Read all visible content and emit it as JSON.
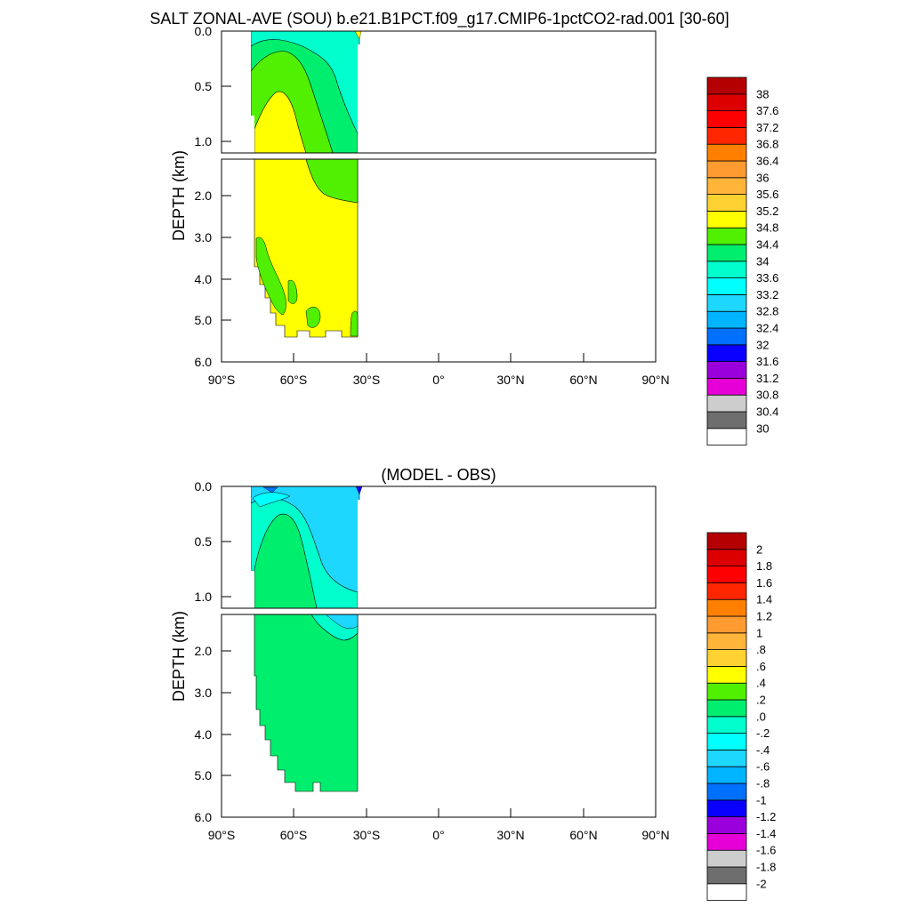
{
  "chart_data": [
    {
      "type": "contour",
      "title": "SALT ZONAL-AVE (SOU) b.e21.B1PCT.f09_g17.CMIP6-1pctCO2-rad.001 [30-60]",
      "ylabel": "DEPTH (km)",
      "xlabel": "",
      "x_ticks": [
        "90°S",
        "60°S",
        "30°S",
        "0°",
        "30°N",
        "60°N",
        "90°N"
      ],
      "x_tick_values": [
        -90,
        -60,
        -30,
        0,
        30,
        60,
        90
      ],
      "xlim": [
        -90,
        90
      ],
      "y_ticks_upper": [
        "0.0",
        "0.5",
        "1.0"
      ],
      "y_ticks_upper_values": [
        0,
        0.5,
        1.0
      ],
      "ylim_upper": [
        0,
        1.15
      ],
      "y_ticks_lower": [
        "2.0",
        "3.0",
        "4.0",
        "5.0",
        "6.0"
      ],
      "y_ticks_lower_values": [
        2,
        3,
        4,
        5,
        6
      ],
      "ylim_lower": [
        1.15,
        6.0
      ],
      "levels": [
        "30",
        "30.4",
        "30.8",
        "31.2",
        "31.6",
        "32",
        "32.4",
        "32.8",
        "33.2",
        "33.6",
        "34",
        "34.4",
        "34.8",
        "35.2",
        "35.6",
        "36",
        "36.4",
        "36.8",
        "37.2",
        "37.6",
        "38"
      ],
      "colors": [
        "#ffffff",
        "#6e6e6e",
        "#cdcdcd",
        "#e600d7",
        "#9a00dc",
        "#0a00ff",
        "#0070ff",
        "#00b4ff",
        "#1ed7ff",
        "#00ffff",
        "#00ffcc",
        "#00ee6e",
        "#50f000",
        "#ffff00",
        "#ffd231",
        "#ffb43a",
        "#ff9b30",
        "#ff8000",
        "#ff2600",
        "#ff0000",
        "#dc0000",
        "#b40000"
      ],
      "regions": [
        {
          "name": "yellow-34.8",
          "color": "#ffff00",
          "depth_range_km": [
            0.6,
            5.4
          ],
          "lat_range": [
            -77,
            -34
          ]
        },
        {
          "name": "green-34.4",
          "color": "#50f000",
          "depth_range_km": [
            0.1,
            2.2
          ],
          "lat_range": [
            -77,
            -34
          ]
        },
        {
          "name": "green-34.0",
          "color": "#00ee6e",
          "depth_range_km": [
            0,
            0.8
          ],
          "lat_range": [
            -77,
            -34
          ]
        },
        {
          "name": "cyan-33.6",
          "color": "#00ffcc",
          "depth_range_km": [
            0,
            0.4
          ],
          "lat_range": [
            -75,
            -34
          ]
        }
      ]
    },
    {
      "type": "contour",
      "title": "(MODEL - OBS)",
      "ylabel": "DEPTH (km)",
      "xlabel": "",
      "x_ticks": [
        "90°S",
        "60°S",
        "30°S",
        "0°",
        "30°N",
        "60°N",
        "90°N"
      ],
      "x_tick_values": [
        -90,
        -60,
        -30,
        0,
        30,
        60,
        90
      ],
      "xlim": [
        -90,
        90
      ],
      "y_ticks_upper": [
        "0.0",
        "0.5",
        "1.0"
      ],
      "y_ticks_upper_values": [
        0,
        0.5,
        1.0
      ],
      "ylim_upper": [
        0,
        1.15
      ],
      "y_ticks_lower": [
        "2.0",
        "3.0",
        "4.0",
        "5.0",
        "6.0"
      ],
      "y_ticks_lower_values": [
        2,
        3,
        4,
        5,
        6
      ],
      "ylim_lower": [
        1.15,
        6.0
      ],
      "levels": [
        "-2",
        "-1.8",
        "-1.6",
        "-1.4",
        "-1.2",
        "-1",
        "-.8",
        "-.6",
        "-.4",
        "-.2",
        ".0",
        ".2",
        ".4",
        ".6",
        ".8",
        "1",
        "1.2",
        "1.4",
        "1.6",
        "1.8",
        "2"
      ],
      "colors": [
        "#ffffff",
        "#6e6e6e",
        "#cdcdcd",
        "#e600d7",
        "#9a00dc",
        "#0a00ff",
        "#0070ff",
        "#00b4ff",
        "#1ed7ff",
        "#00ffff",
        "#00ffcc",
        "#00ee6e",
        "#50f000",
        "#ffff00",
        "#ffd231",
        "#ffb43a",
        "#ff9b30",
        "#ff8000",
        "#ff2600",
        "#ff0000",
        "#dc0000",
        "#b40000"
      ],
      "regions": [
        {
          "name": "green-0.0",
          "color": "#00ee6e",
          "depth_range_km": [
            0.2,
            5.4
          ],
          "lat_range": [
            -77,
            -34
          ]
        },
        {
          "name": "cyan-minus-0.2",
          "color": "#00ffcc",
          "depth_range_km": [
            0.1,
            1.3
          ],
          "lat_range": [
            -77,
            -34
          ]
        },
        {
          "name": "lightblue-minus-0.4",
          "color": "#1ed7ff",
          "depth_range_km": [
            0,
            1.5
          ],
          "lat_range": [
            -75,
            -34
          ]
        },
        {
          "name": "blue-minus-1.2",
          "color": "#0a00ff",
          "depth_range_km": [
            0,
            0.05
          ],
          "lat_range": [
            -35,
            -34
          ]
        }
      ]
    }
  ]
}
